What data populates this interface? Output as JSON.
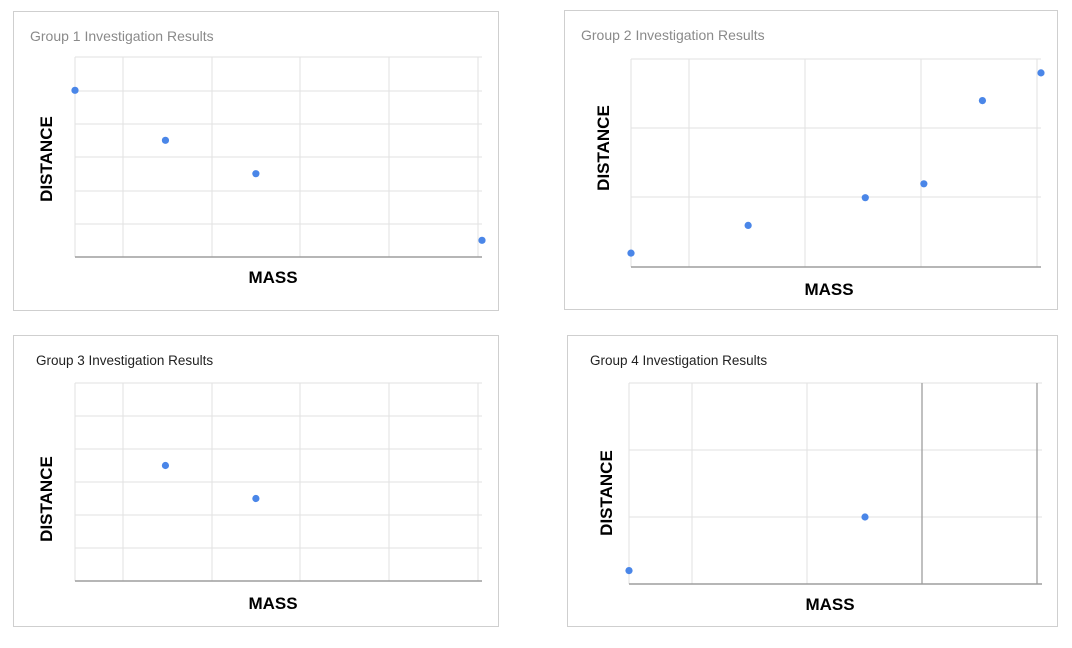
{
  "colors": {
    "point": "#4a86e8",
    "grid": "#e2e2e2",
    "baseline": "#9e9e9e",
    "heavy_grid": "#9e9e9e"
  },
  "chart_data": [
    {
      "type": "scatter",
      "title": "Group 1 Investigation Results",
      "xlabel": "MASS",
      "ylabel": "DISTANCE",
      "xlim": [
        0,
        4.5
      ],
      "ylim": [
        0,
        6
      ],
      "grid": true,
      "points": [
        {
          "x": 0,
          "y": 5
        },
        {
          "x": 1,
          "y": 3.5
        },
        {
          "x": 2,
          "y": 2.5
        },
        {
          "x": 4.5,
          "y": 0.5
        }
      ]
    },
    {
      "type": "scatter",
      "title": "Group 2 Investigation Results",
      "xlabel": "MASS",
      "ylabel": "DISTANCE",
      "xlim": [
        0,
        3.5
      ],
      "ylim": [
        0,
        3
      ],
      "grid": true,
      "points": [
        {
          "x": 0,
          "y": 0.2
        },
        {
          "x": 1,
          "y": 0.6
        },
        {
          "x": 2,
          "y": 1.0
        },
        {
          "x": 2.5,
          "y": 1.2
        },
        {
          "x": 3,
          "y": 2.4
        },
        {
          "x": 3.5,
          "y": 2.8
        }
      ]
    },
    {
      "type": "scatter",
      "title": "Group 3 Investigation Results",
      "xlabel": "MASS",
      "ylabel": "DISTANCE",
      "xlim": [
        0,
        4.5
      ],
      "ylim": [
        0,
        6
      ],
      "grid": true,
      "points": [
        {
          "x": 1,
          "y": 3.5
        },
        {
          "x": 2,
          "y": 2.5
        }
      ]
    },
    {
      "type": "scatter",
      "title": "Group 4 Investigation Results",
      "xlabel": "MASS",
      "ylabel": "DISTANCE",
      "xlim": [
        0,
        3.5
      ],
      "ylim": [
        0,
        3
      ],
      "grid": true,
      "points": [
        {
          "x": 0,
          "y": 0.2
        },
        {
          "x": 2,
          "y": 1.0
        }
      ]
    }
  ]
}
